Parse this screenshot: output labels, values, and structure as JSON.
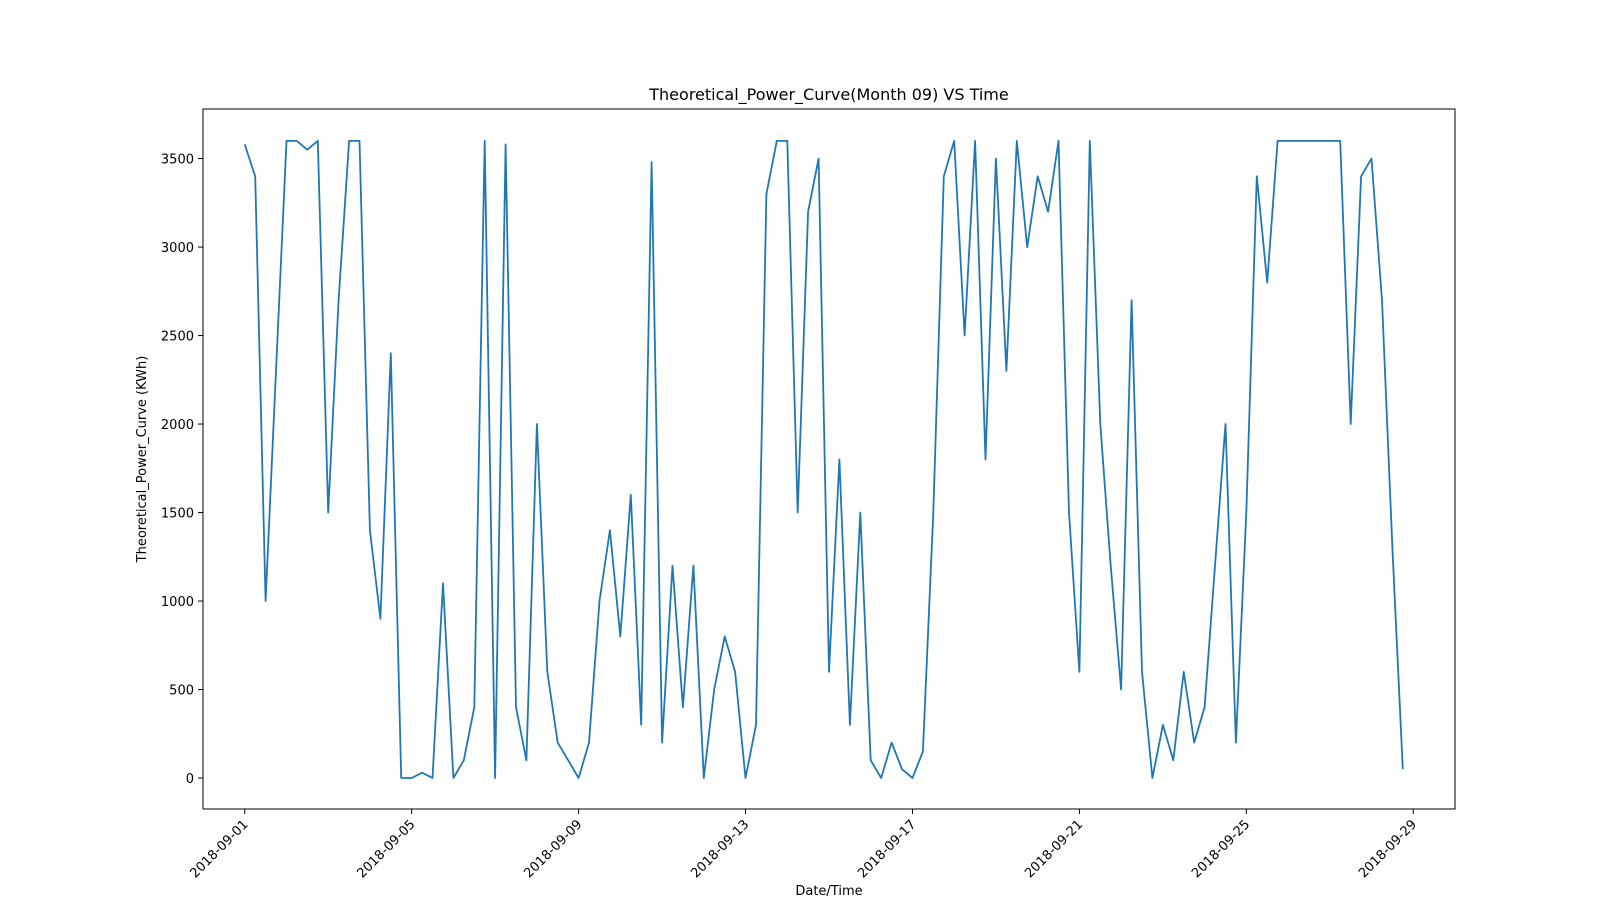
{
  "chart_data": {
    "type": "line",
    "title": "Theoretical_Power_Curve(Month 09) VS Time",
    "xlabel": "Date/Time",
    "ylabel": "Theoretical_Power_Curve (KWh)",
    "x": [
      "2018-09-01",
      "2018-09-01",
      "2018-09-01",
      "2018-09-01",
      "2018-09-02",
      "2018-09-02",
      "2018-09-02",
      "2018-09-02",
      "2018-09-03",
      "2018-09-03",
      "2018-09-03",
      "2018-09-03",
      "2018-09-04",
      "2018-09-04",
      "2018-09-04",
      "2018-09-04",
      "2018-09-05",
      "2018-09-05",
      "2018-09-05",
      "2018-09-05",
      "2018-09-06",
      "2018-09-06",
      "2018-09-06",
      "2018-09-06",
      "2018-09-07",
      "2018-09-07",
      "2018-09-07",
      "2018-09-07",
      "2018-09-08",
      "2018-09-08",
      "2018-09-08",
      "2018-09-08",
      "2018-09-09",
      "2018-09-09",
      "2018-09-09",
      "2018-09-09",
      "2018-09-10",
      "2018-09-10",
      "2018-09-10",
      "2018-09-10",
      "2018-09-11",
      "2018-09-11",
      "2018-09-11",
      "2018-09-11",
      "2018-09-12",
      "2018-09-12",
      "2018-09-12",
      "2018-09-12",
      "2018-09-13",
      "2018-09-13",
      "2018-09-13",
      "2018-09-13",
      "2018-09-14",
      "2018-09-14",
      "2018-09-14",
      "2018-09-14",
      "2018-09-15",
      "2018-09-15",
      "2018-09-15",
      "2018-09-15",
      "2018-09-16",
      "2018-09-16",
      "2018-09-16",
      "2018-09-16",
      "2018-09-17",
      "2018-09-17",
      "2018-09-17",
      "2018-09-17",
      "2018-09-18",
      "2018-09-18",
      "2018-09-18",
      "2018-09-18",
      "2018-09-19",
      "2018-09-19",
      "2018-09-19",
      "2018-09-19",
      "2018-09-20",
      "2018-09-20",
      "2018-09-20",
      "2018-09-20",
      "2018-09-21",
      "2018-09-21",
      "2018-09-21",
      "2018-09-21",
      "2018-09-22",
      "2018-09-22",
      "2018-09-22",
      "2018-09-22",
      "2018-09-23",
      "2018-09-23",
      "2018-09-23",
      "2018-09-23",
      "2018-09-24",
      "2018-09-24",
      "2018-09-24",
      "2018-09-24",
      "2018-09-25",
      "2018-09-25",
      "2018-09-25",
      "2018-09-25",
      "2018-09-26",
      "2018-09-26",
      "2018-09-26",
      "2018-09-26",
      "2018-09-27",
      "2018-09-27",
      "2018-09-27",
      "2018-09-27",
      "2018-09-28",
      "2018-09-28",
      "2018-09-28",
      "2018-09-28"
    ],
    "series": [
      {
        "name": "Theoretical_Power_Curve (KWh)",
        "color": "#1f77b4",
        "values": [
          3580,
          3400,
          1000,
          2300,
          3600,
          3600,
          3550,
          3600,
          1500,
          2700,
          3600,
          3600,
          1400,
          900,
          2400,
          0,
          0,
          30,
          0,
          1100,
          0,
          100,
          400,
          3600,
          0,
          3580,
          400,
          100,
          2000,
          600,
          200,
          100,
          0,
          200,
          1000,
          1400,
          800,
          1600,
          300,
          3480,
          200,
          1200,
          400,
          1200,
          0,
          500,
          800,
          600,
          0,
          300,
          3300,
          3600,
          3600,
          1500,
          3200,
          3500,
          600,
          1800,
          300,
          1500,
          100,
          0,
          200,
          50,
          0,
          150,
          1500,
          3400,
          3600,
          2500,
          3600,
          1800,
          3500,
          2300,
          3600,
          3000,
          3400,
          3200,
          3600,
          1500,
          600,
          3600,
          2000,
          1200,
          500,
          2700,
          600,
          0,
          300,
          100,
          600,
          200,
          400,
          1200,
          2000,
          200,
          1500,
          3400,
          2800,
          3600,
          3600,
          3600,
          3600,
          3600,
          3600,
          3600,
          2000,
          3400,
          3500,
          2700,
          1300,
          50
        ]
      }
    ],
    "xlim": [
      "2018-08-31",
      "2018-09-30"
    ],
    "xticks": [
      "2018-09-01",
      "2018-09-05",
      "2018-09-09",
      "2018-09-13",
      "2018-09-17",
      "2018-09-21",
      "2018-09-25",
      "2018-09-29"
    ],
    "ylim": [
      -175,
      3780
    ],
    "yticks": [
      0,
      500,
      1000,
      1500,
      2000,
      2500,
      3000,
      3500
    ],
    "grid": false
  }
}
